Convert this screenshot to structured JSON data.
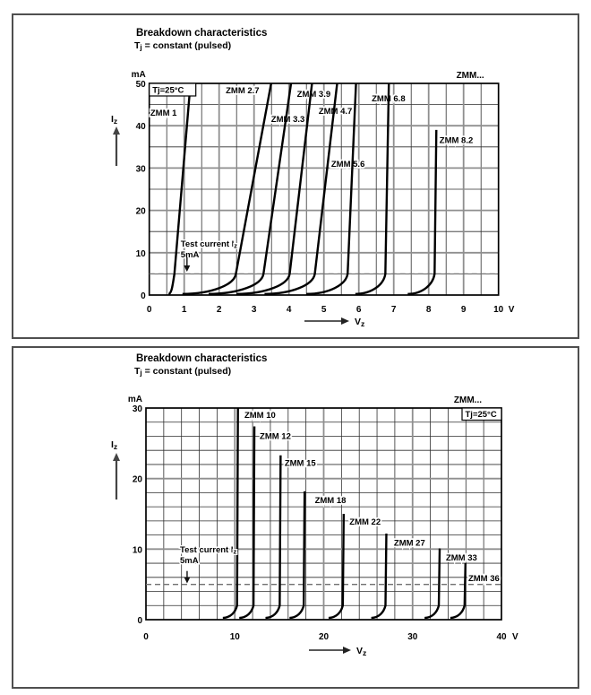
{
  "colors": {
    "curve": "#000000",
    "grid_minor": "#2f2f2f",
    "grid_major": "#8f8f8f",
    "plot_border": "#000000",
    "dashed_level": "#707070",
    "panel_border": "#4f4f4f",
    "text": "#000000",
    "background": "#ffffff"
  },
  "chart_data": [
    {
      "type": "line",
      "title": "Breakdown characteristics",
      "subtitle": {
        "pre": "T",
        "sub": "j",
        "post": " = constant (pulsed)"
      },
      "family_label": "ZMM...",
      "temp_label": "Tj=25°C",
      "temp_label_corner": "top-left",
      "y_unit": "mA",
      "x_unit": "V",
      "x_arrow_label": {
        "pre": "V",
        "sub": "z"
      },
      "y_arrow_label": {
        "pre": "I",
        "sub": "z"
      },
      "xlabel": "Vz",
      "ylabel": "Iz",
      "xlim": [
        0,
        10
      ],
      "ylim": [
        0,
        50
      ],
      "x_tick_step": 1,
      "x_minor_step": 0.5,
      "x_major_step": 1,
      "y_tick_step": 10,
      "y_minor_step": 5,
      "y_major_step": 10,
      "grid": "on",
      "test_current": {
        "label_line1_pre": "Test current I",
        "label_line1_sub": "z",
        "label_line2": "5mA",
        "level_mA": 5,
        "text_v": 0.9,
        "text_i": 12.1,
        "arrow_v": 1.08,
        "arrow_i_from": 8.9,
        "arrow_i_to": 5.5
      },
      "series": [
        {
          "name": "ZMM 1",
          "vz_at_5mA": 0.72,
          "v_at_imax": 1.18,
          "i_max": 50,
          "tail_v": 0.55,
          "label_v": 0.03,
          "label_i": 43.0
        },
        {
          "name": "ZMM 2.7",
          "vz_at_5mA": 2.48,
          "v_at_imax": 3.49,
          "i_max": 50,
          "tail_v": 0.95,
          "label_v": 2.19,
          "label_i": 48.3
        },
        {
          "name": "ZMM 3.3",
          "vz_at_5mA": 3.27,
          "v_at_imax": 4.06,
          "i_max": 50,
          "tail_v": 1.7,
          "label_v": 3.49,
          "label_i": 41.5
        },
        {
          "name": "ZMM 3.9",
          "vz_at_5mA": 4.02,
          "v_at_imax": 4.66,
          "i_max": 50,
          "tail_v": 2.5,
          "label_v": 4.23,
          "label_i": 47.5
        },
        {
          "name": "ZMM 4.7",
          "vz_at_5mA": 4.74,
          "v_at_imax": 5.38,
          "i_max": 50,
          "tail_v": 3.3,
          "label_v": 4.85,
          "label_i": 43.4
        },
        {
          "name": "ZMM 5.6",
          "vz_at_5mA": 5.68,
          "v_at_imax": 5.92,
          "i_max": 50,
          "tail_v": 4.5,
          "label_v": 5.21,
          "label_i": 30.9
        },
        {
          "name": "ZMM 6.8",
          "vz_at_5mA": 6.76,
          "v_at_imax": 6.86,
          "i_max": 50,
          "tail_v": 5.9,
          "label_v": 6.37,
          "label_i": 46.4
        },
        {
          "name": "ZMM 8.2",
          "vz_at_5mA": 8.17,
          "v_at_imax": 8.22,
          "i_max": 39,
          "tail_v": 7.4,
          "label_v": 8.31,
          "label_i": 36.6
        }
      ]
    },
    {
      "type": "line",
      "title": "Breakdown characteristics",
      "subtitle": {
        "pre": "T",
        "sub": "j",
        "post": " = constant (pulsed)"
      },
      "family_label": "ZMM...",
      "temp_label": "Tj=25°C",
      "temp_label_corner": "top-right",
      "y_unit": "mA",
      "x_unit": "V",
      "x_arrow_label": {
        "pre": "V",
        "sub": "z"
      },
      "y_arrow_label": {
        "pre": "I",
        "sub": "z"
      },
      "xlabel": "Vz",
      "ylabel": "Iz",
      "xlim": [
        0,
        40
      ],
      "ylim": [
        0,
        30
      ],
      "x_tick_step": 10,
      "x_minor_step": 2,
      "x_major_step": 10,
      "y_tick_step": 10,
      "y_minor_step": 2,
      "y_major_step": 10,
      "grid": "on",
      "test_current": {
        "label_line1_pre": "Test current I",
        "label_line1_sub": "z",
        "label_line2": "5mA",
        "level_mA": 5,
        "text_v": 3.83,
        "text_i": 9.9,
        "arrow_v": 4.63,
        "arrow_i_from": 6.9,
        "arrow_i_to": 5.15
      },
      "series": [
        {
          "name": "ZMM 10",
          "vz_at_5mA": 10.25,
          "v_at_imax": 10.35,
          "i_max": 30.0,
          "tail_v": 8.65,
          "label_v": 11.08,
          "label_i": 29.0
        },
        {
          "name": "ZMM 12",
          "vz_at_5mA": 12.1,
          "v_at_imax": 12.2,
          "i_max": 27.4,
          "tail_v": 10.5,
          "label_v": 12.8,
          "label_i": 26.0
        },
        {
          "name": "ZMM 15",
          "vz_at_5mA": 15.05,
          "v_at_imax": 15.15,
          "i_max": 23.3,
          "tail_v": 13.45,
          "label_v": 15.6,
          "label_i": 22.2
        },
        {
          "name": "ZMM 18",
          "vz_at_5mA": 17.75,
          "v_at_imax": 17.85,
          "i_max": 18.2,
          "tail_v": 16.15,
          "label_v": 19.0,
          "label_i": 16.9
        },
        {
          "name": "ZMM 22",
          "vz_at_5mA": 22.15,
          "v_at_imax": 22.25,
          "i_max": 15.0,
          "tail_v": 20.55,
          "label_v": 22.9,
          "label_i": 13.85
        },
        {
          "name": "ZMM 27",
          "vz_at_5mA": 26.95,
          "v_at_imax": 27.05,
          "i_max": 12.2,
          "tail_v": 25.35,
          "label_v": 27.9,
          "label_i": 10.9
        },
        {
          "name": "ZMM 33",
          "vz_at_5mA": 32.95,
          "v_at_imax": 33.05,
          "i_max": 10.1,
          "tail_v": 31.35,
          "label_v": 33.75,
          "label_i": 8.8
        },
        {
          "name": "ZMM 36",
          "vz_at_5mA": 35.85,
          "v_at_imax": 35.95,
          "i_max": 8.0,
          "tail_v": 34.25,
          "label_v": 36.27,
          "label_i": 5.85
        }
      ]
    }
  ]
}
